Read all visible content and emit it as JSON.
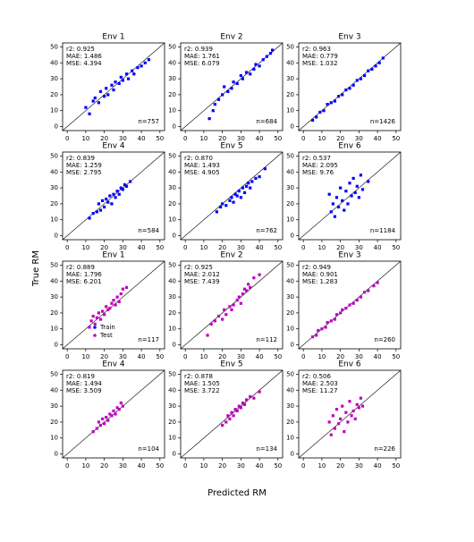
{
  "figure": {
    "xlabel": "Predicted RM",
    "ylabel": "True RM"
  },
  "chart_data": [
    {
      "type": "scatter",
      "title": "Env 1",
      "color": "#0000ff",
      "xlim": [
        -2.5,
        52.5
      ],
      "ylim": [
        -2.5,
        52.5
      ],
      "xticks": [
        0,
        10,
        20,
        30,
        40,
        50
      ],
      "yticks": [
        0,
        10,
        20,
        30,
        40,
        50
      ],
      "annotation": [
        "r2: 0.925",
        "MAE: 1.486",
        "MSE: 4.394"
      ],
      "n_label": "n=757",
      "x": [
        10,
        12,
        14,
        15,
        17,
        18,
        20,
        21,
        22,
        24,
        25,
        26,
        28,
        29,
        30,
        32,
        33,
        35,
        36,
        38,
        40,
        42,
        44
      ],
      "values": [
        12,
        8,
        16,
        18,
        15,
        22,
        19,
        24,
        20,
        26,
        23,
        28,
        27,
        31,
        29,
        33,
        30,
        35,
        33,
        37,
        38,
        40,
        42
      ]
    },
    {
      "type": "scatter",
      "title": "Env 2",
      "color": "#0000ff",
      "xlim": [
        -2.5,
        52.5
      ],
      "ylim": [
        -2.5,
        52.5
      ],
      "xticks": [
        0,
        10,
        20,
        30,
        40,
        50
      ],
      "yticks": [
        0,
        10,
        20,
        30,
        40,
        50
      ],
      "annotation": [
        "r2: 0.939",
        "MAE: 1.761",
        "MSE: 6.079"
      ],
      "n_label": "n=684",
      "x": [
        13,
        15,
        16,
        18,
        20,
        21,
        23,
        25,
        26,
        28,
        30,
        31,
        33,
        35,
        37,
        38,
        40,
        42,
        44,
        46,
        47
      ],
      "values": [
        5,
        10,
        14,
        17,
        20,
        25,
        22,
        24,
        28,
        27,
        32,
        30,
        34,
        33,
        36,
        39,
        38,
        42,
        44,
        46,
        48
      ]
    },
    {
      "type": "scatter",
      "title": "Env 3",
      "color": "#0000ff",
      "xlim": [
        -2.5,
        52.5
      ],
      "ylim": [
        -2.5,
        52.5
      ],
      "xticks": [
        0,
        10,
        20,
        30,
        40,
        50
      ],
      "yticks": [
        0,
        10,
        20,
        30,
        40,
        50
      ],
      "annotation": [
        "r2: 0.963",
        "MAE: 0.779",
        "MSE: 1.032"
      ],
      "n_label": "n=1426",
      "x": [
        5,
        7,
        9,
        11,
        13,
        15,
        17,
        19,
        21,
        23,
        25,
        27,
        29,
        31,
        33,
        35,
        37,
        39,
        41,
        43
      ],
      "values": [
        4,
        6,
        9,
        10,
        14,
        15,
        16,
        19,
        20,
        23,
        24,
        26,
        29,
        30,
        32,
        35,
        36,
        38,
        40,
        43
      ]
    },
    {
      "type": "scatter",
      "title": "Env 4",
      "color": "#0000ff",
      "xlim": [
        -2.5,
        52.5
      ],
      "ylim": [
        -2.5,
        52.5
      ],
      "xticks": [
        0,
        10,
        20,
        30,
        40,
        50
      ],
      "yticks": [
        0,
        10,
        20,
        30,
        40,
        50
      ],
      "annotation": [
        "r2: 0.839",
        "MAE: 1.259",
        "MSE: 2.795"
      ],
      "n_label": "n=584",
      "x": [
        12,
        14,
        16,
        17,
        18,
        19,
        20,
        21,
        22,
        23,
        24,
        25,
        26,
        27,
        28,
        29,
        30,
        31,
        32,
        34
      ],
      "values": [
        11,
        14,
        15,
        20,
        16,
        22,
        18,
        23,
        21,
        25,
        20,
        26,
        24,
        28,
        26,
        30,
        29,
        32,
        31,
        34
      ]
    },
    {
      "type": "scatter",
      "title": "Env 5",
      "color": "#0000ff",
      "xlim": [
        -2.5,
        52.5
      ],
      "ylim": [
        -2.5,
        52.5
      ],
      "xticks": [
        0,
        10,
        20,
        30,
        40,
        50
      ],
      "yticks": [
        0,
        10,
        20,
        30,
        40,
        50
      ],
      "annotation": [
        "r2: 0.870",
        "MAE: 1.493",
        "MSE: 4.905"
      ],
      "n_label": "n=762",
      "x": [
        17,
        19,
        20,
        22,
        24,
        25,
        26,
        27,
        28,
        29,
        30,
        31,
        32,
        33,
        34,
        35,
        36,
        38,
        40,
        43
      ],
      "values": [
        15,
        18,
        20,
        19,
        22,
        24,
        21,
        26,
        25,
        28,
        24,
        30,
        27,
        31,
        33,
        30,
        34,
        36,
        37,
        42
      ]
    },
    {
      "type": "scatter",
      "title": "Env 6",
      "color": "#0000ff",
      "xlim": [
        -2.5,
        52.5
      ],
      "ylim": [
        -2.5,
        52.5
      ],
      "xticks": [
        0,
        10,
        20,
        30,
        40,
        50
      ],
      "yticks": [
        0,
        10,
        20,
        30,
        40,
        50
      ],
      "annotation": [
        "r2: 0.537",
        "MAE: 2.095",
        "MSE: 9.76"
      ],
      "n_label": "n=1184",
      "x": [
        14,
        15,
        16,
        17,
        18,
        19,
        20,
        21,
        22,
        23,
        24,
        25,
        26,
        27,
        28,
        29,
        30,
        31,
        32,
        35
      ],
      "values": [
        26,
        15,
        20,
        12,
        24,
        18,
        30,
        22,
        16,
        28,
        20,
        33,
        25,
        36,
        27,
        31,
        24,
        38,
        29,
        34
      ]
    },
    {
      "type": "scatter",
      "title": "Env 1",
      "color": "#bf00bf",
      "xlim": [
        -2.5,
        52.5
      ],
      "ylim": [
        -2.5,
        52.5
      ],
      "xticks": [
        0,
        10,
        20,
        30,
        40,
        50
      ],
      "yticks": [
        0,
        10,
        20,
        30,
        40,
        50
      ],
      "annotation": [
        "r2: 0.889",
        "MAE: 1.796",
        "MSE: 6.201"
      ],
      "n_label": "n=117",
      "legend": [
        {
          "name": "Train",
          "color": "#0000ff"
        },
        {
          "name": "Test",
          "color": "#bf00bf"
        }
      ],
      "x": [
        12,
        13,
        14,
        15,
        16,
        17,
        18,
        19,
        20,
        21,
        22,
        23,
        24,
        25,
        26,
        27,
        28,
        29,
        30,
        32
      ],
      "values": [
        11,
        15,
        18,
        13,
        17,
        20,
        16,
        21,
        19,
        24,
        22,
        23,
        26,
        28,
        25,
        30,
        27,
        32,
        35,
        36
      ]
    },
    {
      "type": "scatter",
      "title": "Env 2",
      "color": "#bf00bf",
      "xlim": [
        -2.5,
        52.5
      ],
      "ylim": [
        -2.5,
        52.5
      ],
      "xticks": [
        0,
        10,
        20,
        30,
        40,
        50
      ],
      "yticks": [
        0,
        10,
        20,
        30,
        40,
        50
      ],
      "annotation": [
        "r2: 0.925",
        "MAE: 2.012",
        "MSE: 7.439"
      ],
      "n_label": "n=112",
      "x": [
        12,
        14,
        16,
        18,
        20,
        21,
        22,
        24,
        25,
        26,
        28,
        29,
        30,
        31,
        32,
        33,
        34,
        35,
        37,
        40
      ],
      "values": [
        6,
        13,
        15,
        18,
        16,
        22,
        19,
        24,
        22,
        25,
        28,
        30,
        26,
        32,
        35,
        34,
        38,
        36,
        42,
        44
      ]
    },
    {
      "type": "scatter",
      "title": "Env 3",
      "color": "#bf00bf",
      "xlim": [
        -2.5,
        52.5
      ],
      "ylim": [
        -2.5,
        52.5
      ],
      "xticks": [
        0,
        10,
        20,
        30,
        40,
        50
      ],
      "yticks": [
        0,
        10,
        20,
        30,
        40,
        50
      ],
      "annotation": [
        "r2: 0.949",
        "MAE: 0.901",
        "MSE: 1.283"
      ],
      "n_label": "n=260",
      "x": [
        5,
        7,
        8,
        10,
        12,
        13,
        15,
        17,
        18,
        20,
        21,
        23,
        25,
        27,
        29,
        31,
        33,
        35,
        38,
        40
      ],
      "values": [
        5,
        6,
        9,
        10,
        11,
        14,
        15,
        16,
        19,
        20,
        22,
        23,
        25,
        26,
        28,
        30,
        33,
        34,
        37,
        39
      ]
    },
    {
      "type": "scatter",
      "title": "Env 4",
      "color": "#bf00bf",
      "xlim": [
        -2.5,
        52.5
      ],
      "ylim": [
        -2.5,
        52.5
      ],
      "xticks": [
        0,
        10,
        20,
        30,
        40,
        50
      ],
      "yticks": [
        0,
        10,
        20,
        30,
        40,
        50
      ],
      "annotation": [
        "r2: 0.819",
        "MAE: 1.494",
        "MSE: 3.509"
      ],
      "n_label": "n=104",
      "x": [
        14,
        16,
        17,
        18,
        19,
        20,
        21,
        22,
        23,
        24,
        25,
        26,
        27,
        28,
        29,
        30
      ],
      "values": [
        14,
        16,
        20,
        18,
        22,
        19,
        23,
        21,
        25,
        24,
        27,
        25,
        29,
        28,
        32,
        30
      ]
    },
    {
      "type": "scatter",
      "title": "Env 5",
      "color": "#bf00bf",
      "xlim": [
        -2.5,
        52.5
      ],
      "ylim": [
        -2.5,
        52.5
      ],
      "xticks": [
        0,
        10,
        20,
        30,
        40,
        50
      ],
      "yticks": [
        0,
        10,
        20,
        30,
        40,
        50
      ],
      "annotation": [
        "r2: 0.878",
        "MAE: 1.505",
        "MSE: 3.722"
      ],
      "n_label": "n=134",
      "x": [
        20,
        22,
        23,
        24,
        25,
        26,
        27,
        28,
        29,
        30,
        31,
        32,
        33,
        35,
        37,
        40
      ],
      "values": [
        18,
        20,
        24,
        22,
        26,
        24,
        28,
        27,
        30,
        29,
        32,
        31,
        34,
        36,
        35,
        39
      ]
    },
    {
      "type": "scatter",
      "title": "Env 6",
      "color": "#bf00bf",
      "xlim": [
        -2.5,
        52.5
      ],
      "ylim": [
        -2.5,
        52.5
      ],
      "xticks": [
        0,
        10,
        20,
        30,
        40,
        50
      ],
      "yticks": [
        0,
        10,
        20,
        30,
        40,
        50
      ],
      "annotation": [
        "r2: 0.506",
        "MAE: 2.503",
        "MSE: 11.27"
      ],
      "n_label": "n=226",
      "x": [
        14,
        15,
        16,
        17,
        18,
        19,
        20,
        21,
        22,
        23,
        24,
        25,
        26,
        27,
        28,
        29,
        30,
        31,
        32
      ],
      "values": [
        20,
        12,
        24,
        16,
        28,
        19,
        22,
        30,
        14,
        26,
        20,
        33,
        24,
        27,
        22,
        31,
        29,
        35,
        30
      ]
    }
  ]
}
